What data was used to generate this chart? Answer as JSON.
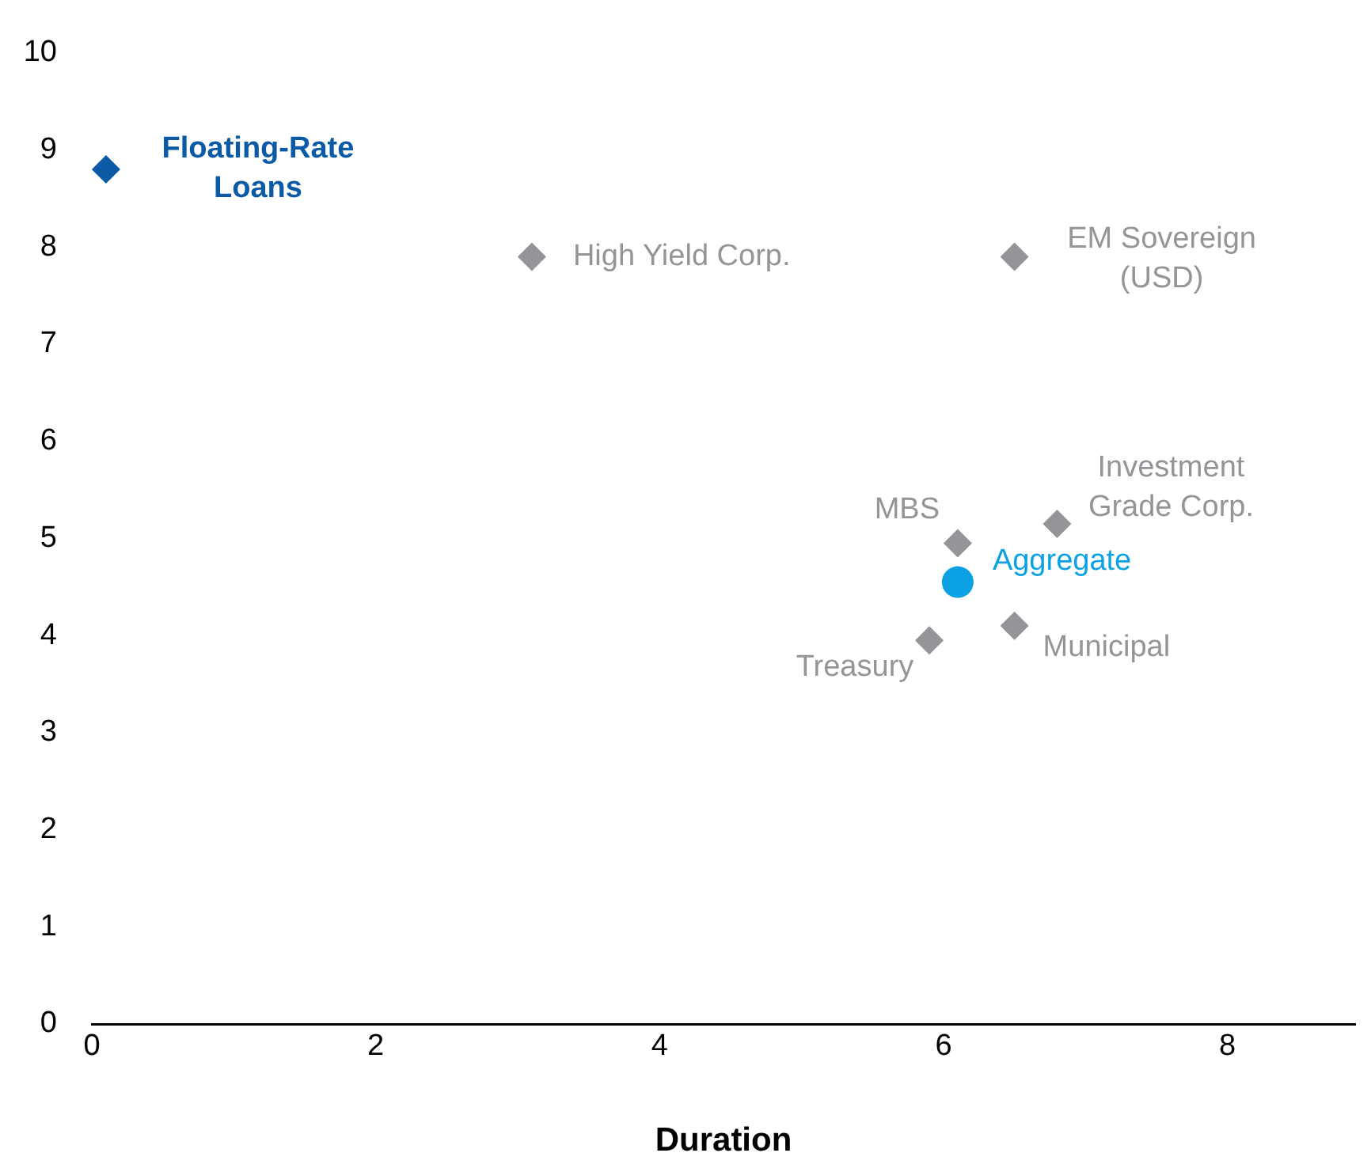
{
  "chart_data": {
    "type": "scatter",
    "xlabel": "Duration",
    "xlim": [
      0,
      8.9
    ],
    "xticks": [
      0,
      2,
      4,
      6,
      8
    ],
    "ylim": [
      0,
      10
    ],
    "yticks": [
      0,
      1,
      2,
      3,
      4,
      5,
      6,
      7,
      8,
      9,
      10
    ],
    "grid": false,
    "legend": false,
    "marker": "diamond",
    "series": [
      {
        "name": "Floating-Rate\nLoans",
        "color": "#0b5aa6",
        "x": [
          0.1
        ],
        "values": [
          8.8
        ]
      },
      {
        "name": "High Yield Corp.",
        "color": "#939598",
        "x": [
          3.1
        ],
        "values": [
          7.9
        ]
      },
      {
        "name": "EM Sovereign\n(USD)",
        "color": "#939598",
        "x": [
          6.5
        ],
        "values": [
          7.9
        ]
      },
      {
        "name": "Investment\nGrade Corp.",
        "color": "#939598",
        "x": [
          6.8
        ],
        "values": [
          5.15
        ]
      },
      {
        "name": "MBS",
        "color": "#939598",
        "x": [
          6.1
        ],
        "values": [
          4.95
        ]
      },
      {
        "name": "Aggregate",
        "color": "#0ba1e2",
        "x": [
          6.1
        ],
        "values": [
          4.55
        ],
        "marker": "circle"
      },
      {
        "name": "Municipal",
        "color": "#939598",
        "x": [
          6.5
        ],
        "values": [
          4.1
        ]
      },
      {
        "name": "Treasury",
        "color": "#939598",
        "x": [
          5.9
        ],
        "values": [
          3.95
        ]
      }
    ]
  }
}
